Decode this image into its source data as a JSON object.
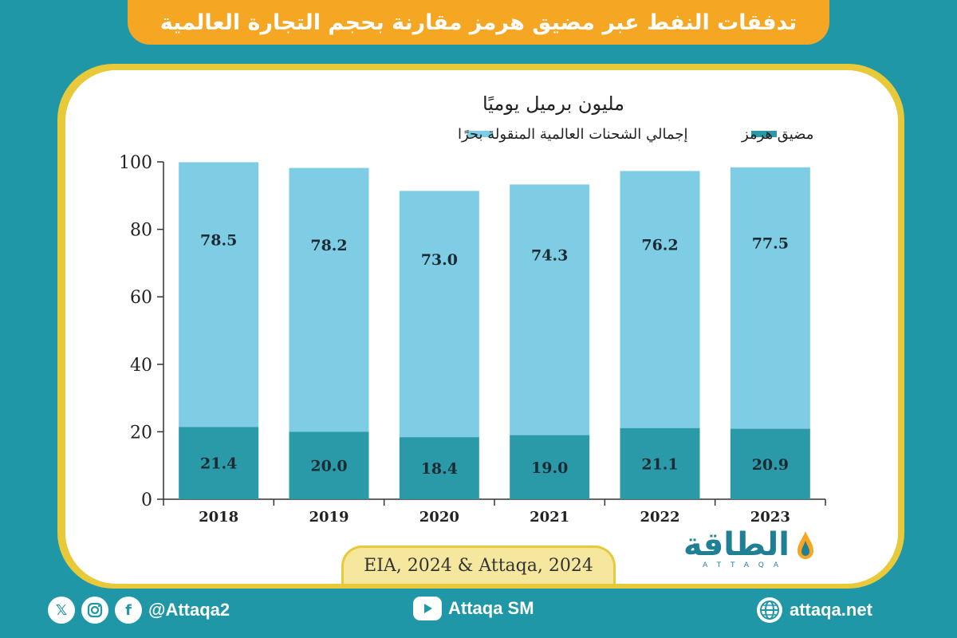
{
  "title": "تدفقات النفط عبر مضيق هرمز مقارنة بحجم التجارة العالمية",
  "colors": {
    "background": "#1f97a6",
    "title_bar": "#f5a623",
    "frame": "#e8c93a",
    "hormuz": "#2a9aa9",
    "global": "#7ecde4"
  },
  "chart_data": {
    "type": "bar",
    "stacked": true,
    "ylabel": "مليون برميل يوميًا",
    "ylim": [
      0,
      100
    ],
    "yticks": [
      0,
      20,
      40,
      60,
      80,
      100
    ],
    "categories": [
      "2018",
      "2019",
      "2020",
      "2021",
      "2022",
      "2023"
    ],
    "series": [
      {
        "name": "مضيق هرمز",
        "values": [
          21.4,
          20.0,
          18.4,
          19.0,
          21.1,
          20.9
        ],
        "labels": [
          "21.4",
          "20.0",
          "18.4",
          "19.0",
          "21.1",
          "20.9"
        ],
        "color": "#2a9aa9"
      },
      {
        "name": "إجمالي الشحنات العالمية المنقولة بحرًا",
        "values": [
          78.5,
          78.2,
          73.0,
          74.3,
          76.2,
          77.5
        ],
        "labels": [
          "78.5",
          "78.2",
          "73.0",
          "74.3",
          "76.2",
          "77.5"
        ],
        "color": "#7ecde4"
      }
    ],
    "legend": "top"
  },
  "source": "EIA, 2024 & Attaqa, 2024",
  "logo": {
    "arabic": "الطاقة",
    "latin": "ATTAQA"
  },
  "footer": {
    "social_handle": "@Attaqa2",
    "youtube": "Attaqa SM",
    "website": "attaqa.net",
    "icons": [
      "x-icon",
      "instagram-icon",
      "facebook-icon",
      "youtube-icon",
      "globe-icon"
    ]
  }
}
